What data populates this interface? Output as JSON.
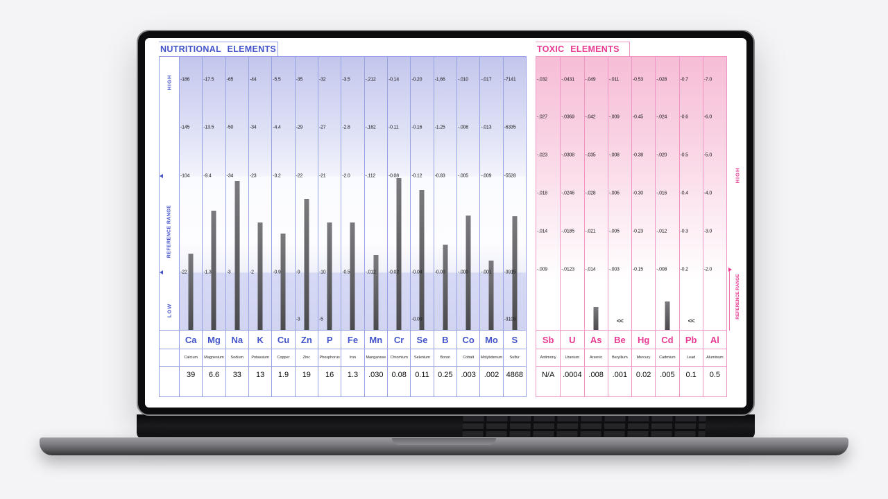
{
  "colors": {
    "page_background": "#f4f4f6",
    "nutritional_accent": "#4353c9",
    "nutritional_border": "#97a2e2",
    "toxic_accent": "#e93a92",
    "toxic_border": "#f096c4",
    "bar": "#4b4b4f"
  },
  "chart_data": [
    {
      "type": "bar",
      "panel": "nutritional",
      "title": "NUTRITIONAL ELEMENTS",
      "band_labels": [
        "HIGH",
        "REFERENCE RANGE",
        "LOW"
      ],
      "legend_position": "left",
      "grid": false,
      "tick_pcts": [
        8.3,
        26.0,
        43.7,
        79.0
      ],
      "low_tick_pct": 96.2,
      "columns": [
        {
          "symbol": "Ca",
          "name": "Calcium",
          "value": "39",
          "ticks": [
            "186",
            "145",
            "104",
            "22"
          ],
          "bar_pct": 27.8
        },
        {
          "symbol": "Mg",
          "name": "Magnesium",
          "value": "6.6",
          "ticks": [
            "17.5",
            "13.5",
            "9.4",
            "1.3"
          ],
          "bar_pct": 43.7
        },
        {
          "symbol": "Na",
          "name": "Sodium",
          "value": "33",
          "ticks": [
            "65",
            "50",
            "34",
            "3"
          ],
          "bar_pct": 54.5
        },
        {
          "symbol": "K",
          "name": "Potassium",
          "value": "13",
          "ticks": [
            "44",
            "34",
            "23",
            "2"
          ],
          "bar_pct": 39.4
        },
        {
          "symbol": "Cu",
          "name": "Copper",
          "value": "1.9",
          "ticks": [
            "5.5",
            "4.4",
            "3.2",
            "0.9"
          ],
          "bar_pct": 35.4
        },
        {
          "symbol": "Zn",
          "name": "Zinc",
          "value": "19",
          "ticks": [
            "35",
            "29",
            "22",
            "9"
          ],
          "low_tick": "3",
          "bar_pct": 48.0
        },
        {
          "symbol": "P",
          "name": "Phosphorus",
          "value": "16",
          "ticks": [
            "32",
            "27",
            "21",
            "10"
          ],
          "low_tick": "5",
          "bar_pct": 39.4
        },
        {
          "symbol": "Fe",
          "name": "Iron",
          "value": "1.3",
          "ticks": [
            "3.5",
            "2.8",
            "2.0",
            "0.5"
          ],
          "bar_pct": 39.4
        },
        {
          "symbol": "Mn",
          "name": "Manganese",
          "value": ".030",
          "ticks": [
            ".212",
            ".162",
            ".112",
            ".012"
          ],
          "bar_pct": 27.3
        },
        {
          "symbol": "Cr",
          "name": "Chromium",
          "value": "0.08",
          "ticks": [
            "0.14",
            "0.11",
            "0.08",
            "0.02"
          ],
          "bar_pct": 55.6
        },
        {
          "symbol": "Se",
          "name": "Selenium",
          "value": "0.11",
          "ticks": [
            "0.20",
            "0.16",
            "0.12",
            "0.04"
          ],
          "low_tick": "0.00",
          "bar_pct": 51.3
        },
        {
          "symbol": "B",
          "name": "Boron",
          "value": "0.25",
          "ticks": [
            "1.66",
            "1.25",
            "0.83",
            "0.00"
          ],
          "bar_pct": 31.1
        },
        {
          "symbol": "Co",
          "name": "Cobalt",
          "value": ".003",
          "ticks": [
            ".010",
            ".008",
            ".005",
            ".000"
          ],
          "bar_pct": 41.9
        },
        {
          "symbol": "Mo",
          "name": "Molybdenum",
          "value": ".002",
          "ticks": [
            ".017",
            ".013",
            ".009",
            ".001"
          ],
          "bar_pct": 25.3
        },
        {
          "symbol": "S",
          "name": "Sulfur",
          "value": "4868",
          "ticks": [
            "7141",
            "6335",
            "5528",
            "3915"
          ],
          "low_tick": "3109",
          "bar_pct": 41.7
        }
      ]
    },
    {
      "type": "bar",
      "panel": "toxic",
      "title": "TOXIC ELEMENTS",
      "band_labels": [
        "HIGH",
        "REFERENCE RANGE"
      ],
      "legend_position": "right",
      "grid": false,
      "tick_pcts": [
        8.3,
        22.2,
        36.1,
        50.0,
        63.9,
        77.8
      ],
      "columns": [
        {
          "symbol": "Sb",
          "name": "Antimony",
          "value": "N/A",
          "ticks": [
            ".032",
            ".027",
            ".023",
            ".018",
            ".014",
            ".009"
          ]
        },
        {
          "symbol": "U",
          "name": "Uranium",
          "value": ".0004",
          "ticks": [
            ".0431",
            ".0369",
            ".0308",
            ".0246",
            ".0185",
            ".0123"
          ]
        },
        {
          "symbol": "As",
          "name": "Arsenic",
          "value": ".008",
          "ticks": [
            ".049",
            ".042",
            ".035",
            ".028",
            ".021",
            ".014"
          ],
          "bar_pct": 8.3
        },
        {
          "symbol": "Be",
          "name": "Beryllium",
          "value": ".001",
          "ticks": [
            ".011",
            ".009",
            ".008",
            ".006",
            ".005",
            ".003"
          ],
          "marker": "<<"
        },
        {
          "symbol": "Hg",
          "name": "Mercury",
          "value": "0.02",
          "ticks": [
            "0.53",
            "0.45",
            "0.38",
            "0.30",
            "0.23",
            "0.15"
          ]
        },
        {
          "symbol": "Cd",
          "name": "Cadmium",
          "value": ".005",
          "ticks": [
            ".028",
            ".024",
            ".020",
            ".016",
            ".012",
            ".008"
          ],
          "bar_pct": 10.4
        },
        {
          "symbol": "Pb",
          "name": "Lead",
          "value": "0.1",
          "ticks": [
            "0.7",
            "0.6",
            "0.5",
            "0.4",
            "0.3",
            "0.2"
          ],
          "marker": "<<"
        },
        {
          "symbol": "Al",
          "name": "Aluminum",
          "value": "0.5",
          "ticks": [
            "7.0",
            "6.0",
            "5.0",
            "4.0",
            "3.0",
            "2.0"
          ]
        }
      ]
    }
  ]
}
